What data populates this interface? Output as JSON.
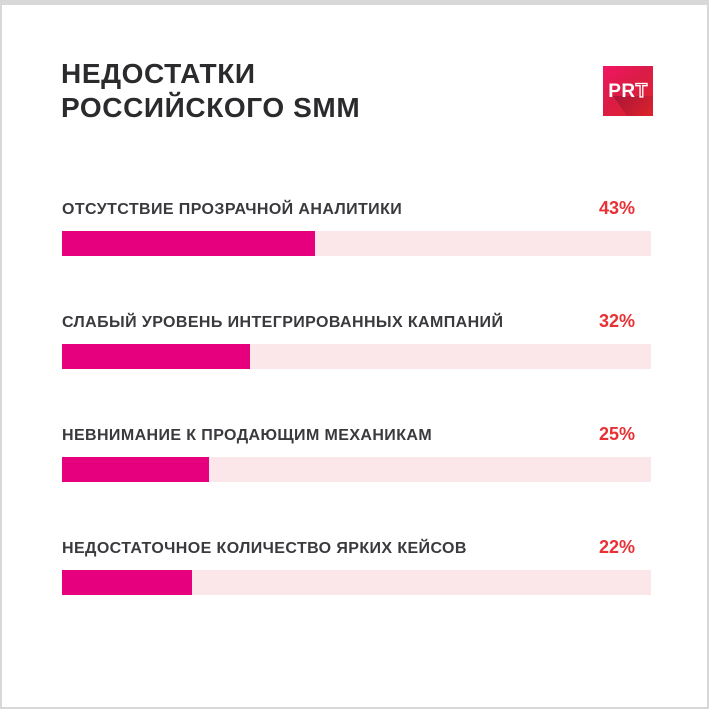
{
  "page": {
    "background_color": "#ffffff",
    "frame_color": "#d8d8d8"
  },
  "header": {
    "title_line1": "НЕДОСТАТКИ",
    "title_line2": "РОССИЙСКОГО SMM",
    "title_color": "#2b2b2e",
    "logo": {
      "text_solid": "PR",
      "text_outline": "T",
      "gradient_start": "#f31563",
      "gradient_end": "#e5242b"
    }
  },
  "chart_data": {
    "type": "bar",
    "orientation": "horizontal",
    "title": "НЕДОСТАТКИ РОССИЙСКОГО SMM",
    "categories": [
      "ОТСУТСТВИЕ ПРОЗРАЧНОЙ АНАЛИТИКИ",
      "СЛАБЫЙ УРОВЕНЬ ИНТЕГРИРОВАННЫХ КАМПАНИЙ",
      "НЕВНИМАНИЕ К ПРОДАЮЩИМ МЕХАНИКАМ",
      "НЕДОСТАТОЧНОЕ КОЛИЧЕСТВО ЯРКИХ КЕЙСОВ"
    ],
    "values": [
      43,
      32,
      25,
      22
    ],
    "value_labels": [
      "43%",
      "32%",
      "25%",
      "22%"
    ],
    "xlim": [
      0,
      100
    ],
    "grid": false,
    "legend": false,
    "bar_color": "#e6007e",
    "track_color": "#fbe6e9",
    "value_color": "#e83135",
    "label_color": "#3a3a3e"
  },
  "rows": [
    {
      "label": "ОТСУТСТВИЕ ПРОЗРАЧНОЙ АНАЛИТИКИ",
      "value": "43%",
      "pct": 43
    },
    {
      "label": "СЛАБЫЙ УРОВЕНЬ ИНТЕГРИРОВАННЫХ КАМПАНИЙ",
      "value": "32%",
      "pct": 32
    },
    {
      "label": "НЕВНИМАНИЕ К ПРОДАЮЩИМ МЕХАНИКАМ",
      "value": "25%",
      "pct": 25
    },
    {
      "label": "НЕДОСТАТОЧНОЕ КОЛИЧЕСТВО ЯРКИХ КЕЙСОВ",
      "value": "22%",
      "pct": 22
    }
  ]
}
